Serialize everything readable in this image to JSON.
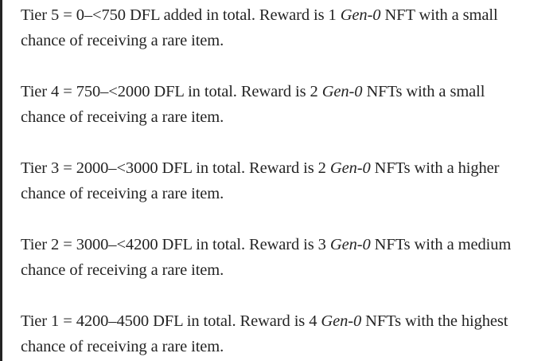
{
  "tiers": [
    {
      "a": "Tier 5 = 0–<750 DFL added in total. Reward is 1 ",
      "em": "Gen-0",
      "b": " NFT with a small",
      "c": "chance of receiving a rare item."
    },
    {
      "a": "Tier 4 = 750–<2000 DFL in total. Reward is 2 ",
      "em": "Gen-0",
      "b": " NFTs with a small",
      "c": "chance of receiving a rare item."
    },
    {
      "a": "Tier 3 = 2000–<3000 DFL in total. Reward is 2 ",
      "em": "Gen-0",
      "b": " NFTs with a higher",
      "c": "chance of receiving a rare item."
    },
    {
      "a": "Tier 2 = 3000–<4200 DFL in total. Reward is 3 ",
      "em": "Gen-0",
      "b": " NFTs with a medium",
      "c": "chance of receiving a rare item."
    },
    {
      "a": "Tier 1 = 4200–4500 DFL in total. Reward is 4 ",
      "em": "Gen-0",
      "b": " NFTs with the highest",
      "c": "chance of receiving a rare item."
    }
  ]
}
